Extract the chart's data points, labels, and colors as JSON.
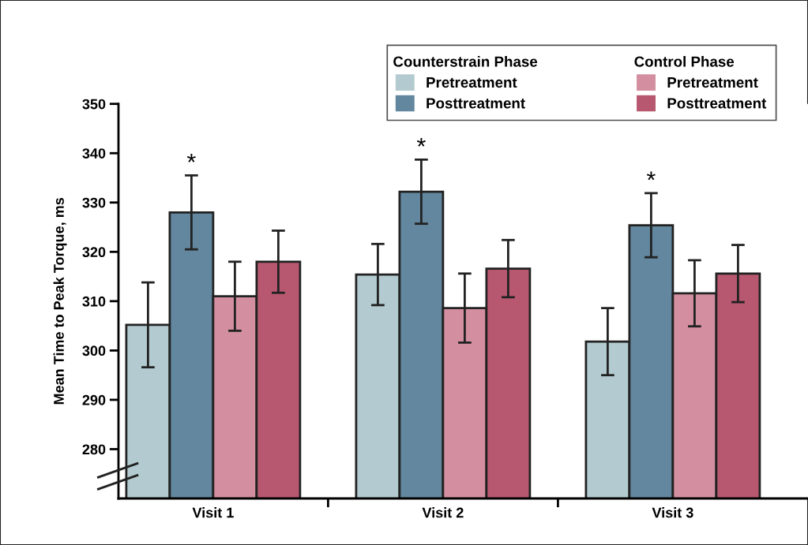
{
  "chart_data": {
    "type": "bar",
    "ylabel": "Mean Time to Peak Torque, ms",
    "categories": [
      "Visit 1",
      "Visit 2",
      "Visit 3"
    ],
    "series": [
      {
        "name": "Pretreatment",
        "color": "#b3cbd0",
        "values": [
          305.2,
          315.4,
          301.8
        ],
        "errors": [
          8.6,
          6.2,
          6.8
        ]
      },
      {
        "name": "Posttreatment",
        "color": "#62879e",
        "values": [
          328.0,
          332.2,
          325.4
        ],
        "errors": [
          7.5,
          6.5,
          6.5
        ],
        "value_labels": [
          "*",
          "*",
          "*"
        ]
      },
      {
        "name": "Pretreatment",
        "color": "#d38fa0",
        "values": [
          311.0,
          308.6,
          311.6
        ],
        "errors": [
          7.0,
          7.0,
          6.7
        ]
      },
      {
        "name": "Posttreatment",
        "color": "#b75870",
        "values": [
          318.0,
          316.6,
          315.6
        ],
        "errors": [
          6.3,
          5.8,
          5.8
        ]
      }
    ],
    "annotations": [
      "Counterstrain Phase",
      "Control Phase"
    ],
    "ylim": [
      270,
      350
    ],
    "yticks": [
      280,
      290,
      300,
      310,
      320,
      330,
      340,
      350
    ],
    "grid": false,
    "legend": "top right"
  }
}
